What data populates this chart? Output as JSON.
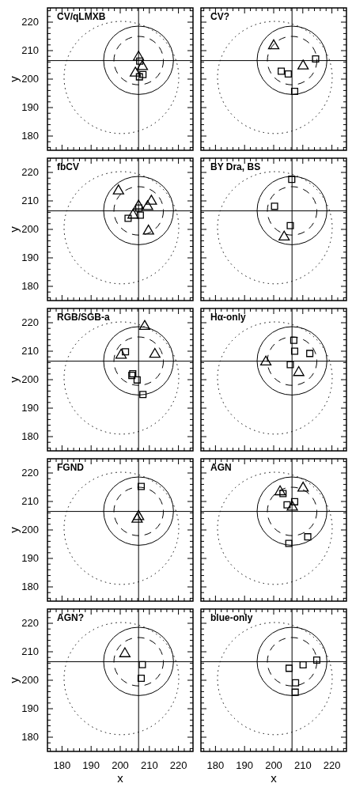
{
  "chart_data": [
    {
      "type": "scatter",
      "title": "CV/qLMXB",
      "ylabel": "y",
      "tick_labels": "y",
      "xlim": [
        175,
        225
      ],
      "ylim": [
        175,
        225
      ],
      "xticks": [
        {
          "value": 176,
          "label": null
        },
        {
          "value": 178,
          "label": null
        },
        180,
        {
          "value": 182,
          "label": null
        },
        {
          "value": 184,
          "label": null
        },
        {
          "value": 186,
          "label": null
        },
        {
          "value": 188,
          "label": null
        },
        190,
        {
          "value": 192,
          "label": null
        },
        {
          "value": 194,
          "label": null
        },
        {
          "value": 196,
          "label": null
        },
        {
          "value": 198,
          "label": null
        },
        200,
        {
          "value": 202,
          "label": null
        },
        {
          "value": 204,
          "label": null
        },
        {
          "value": 206,
          "label": null
        },
        {
          "value": 208,
          "label": null
        },
        210,
        {
          "value": 212,
          "label": null
        },
        {
          "value": 214,
          "label": null
        },
        {
          "value": 216,
          "label": null
        },
        {
          "value": 218,
          "label": null
        },
        220,
        {
          "value": 222,
          "label": null
        },
        {
          "value": 224,
          "label": null
        }
      ],
      "yticks": [
        {
          "value": 176,
          "label": null
        },
        {
          "value": 178,
          "label": null
        },
        180,
        {
          "value": 182,
          "label": null
        },
        {
          "value": 184,
          "label": null
        },
        {
          "value": 186,
          "label": null
        },
        {
          "value": 188,
          "label": null
        },
        190,
        {
          "value": 192,
          "label": null
        },
        {
          "value": 194,
          "label": null
        },
        {
          "value": 196,
          "label": null
        },
        {
          "value": 198,
          "label": null
        },
        200,
        {
          "value": 202,
          "label": null
        },
        {
          "value": 204,
          "label": null
        },
        {
          "value": 206,
          "label": null
        },
        {
          "value": 208,
          "label": null
        },
        210,
        {
          "value": 212,
          "label": null
        },
        {
          "value": 214,
          "label": null
        },
        {
          "value": 216,
          "label": null
        },
        {
          "value": 218,
          "label": null
        },
        220,
        {
          "value": 222,
          "label": null
        },
        {
          "value": 224,
          "label": null
        }
      ],
      "ref_lines": [
        {
          "axis": "x",
          "value": 206.3,
          "color": "#000000"
        },
        {
          "axis": "y",
          "value": 206.5,
          "color": "#000000"
        }
      ],
      "series": [
        {
          "marker": "triangle",
          "color": "#000000",
          "x": [
            206.3,
            207.6,
            205.2
          ],
          "values": [
            207.7,
            204.4,
            202.1
          ]
        },
        {
          "marker": "square",
          "color": "#000000",
          "x": [
            206.7,
            207.8,
            206.6
          ],
          "values": [
            206.3,
            201.6,
            200.8
          ]
        }
      ]
    },
    {
      "type": "scatter",
      "title": "CV?",
      "tick_labels": false,
      "xlim": [
        175,
        225
      ],
      "ylim": [
        175,
        225
      ],
      "xticks": [
        {
          "value": 176,
          "label": null
        },
        {
          "value": 178,
          "label": null
        },
        180,
        {
          "value": 182,
          "label": null
        },
        {
          "value": 184,
          "label": null
        },
        {
          "value": 186,
          "label": null
        },
        {
          "value": 188,
          "label": null
        },
        190,
        {
          "value": 192,
          "label": null
        },
        {
          "value": 194,
          "label": null
        },
        {
          "value": 196,
          "label": null
        },
        {
          "value": 198,
          "label": null
        },
        200,
        {
          "value": 202,
          "label": null
        },
        {
          "value": 204,
          "label": null
        },
        {
          "value": 206,
          "label": null
        },
        {
          "value": 208,
          "label": null
        },
        210,
        {
          "value": 212,
          "label": null
        },
        {
          "value": 214,
          "label": null
        },
        {
          "value": 216,
          "label": null
        },
        {
          "value": 218,
          "label": null
        },
        220,
        {
          "value": 222,
          "label": null
        },
        {
          "value": 224,
          "label": null
        }
      ],
      "yticks": [
        {
          "value": 176,
          "label": null
        },
        {
          "value": 178,
          "label": null
        },
        180,
        {
          "value": 182,
          "label": null
        },
        {
          "value": 184,
          "label": null
        },
        {
          "value": 186,
          "label": null
        },
        {
          "value": 188,
          "label": null
        },
        190,
        {
          "value": 192,
          "label": null
        },
        {
          "value": 194,
          "label": null
        },
        {
          "value": 196,
          "label": null
        },
        {
          "value": 198,
          "label": null
        },
        200,
        {
          "value": 202,
          "label": null
        },
        {
          "value": 204,
          "label": null
        },
        {
          "value": 206,
          "label": null
        },
        {
          "value": 208,
          "label": null
        },
        210,
        {
          "value": 212,
          "label": null
        },
        {
          "value": 214,
          "label": null
        },
        {
          "value": 216,
          "label": null
        },
        {
          "value": 218,
          "label": null
        },
        220,
        {
          "value": 222,
          "label": null
        },
        {
          "value": 224,
          "label": null
        }
      ],
      "ref_lines": [
        {
          "axis": "x",
          "value": 206.3,
          "color": "#000000"
        },
        {
          "axis": "y",
          "value": 206.5,
          "color": "#000000"
        }
      ],
      "series": [
        {
          "marker": "triangle",
          "color": "#000000",
          "x": [
            200.0,
            210.1
          ],
          "values": [
            211.7,
            204.6
          ]
        },
        {
          "marker": "square",
          "color": "#000000",
          "x": [
            214.4,
            202.6,
            205.0,
            207.2
          ],
          "values": [
            207.1,
            202.8,
            201.8,
            195.7
          ]
        }
      ]
    },
    {
      "type": "scatter",
      "title": "fbCV",
      "ylabel": "y",
      "tick_labels": "y",
      "xlim": [
        175,
        225
      ],
      "ylim": [
        175,
        225
      ],
      "xticks": [
        {
          "value": 176,
          "label": null
        },
        {
          "value": 178,
          "label": null
        },
        180,
        {
          "value": 182,
          "label": null
        },
        {
          "value": 184,
          "label": null
        },
        {
          "value": 186,
          "label": null
        },
        {
          "value": 188,
          "label": null
        },
        190,
        {
          "value": 192,
          "label": null
        },
        {
          "value": 194,
          "label": null
        },
        {
          "value": 196,
          "label": null
        },
        {
          "value": 198,
          "label": null
        },
        200,
        {
          "value": 202,
          "label": null
        },
        {
          "value": 204,
          "label": null
        },
        {
          "value": 206,
          "label": null
        },
        {
          "value": 208,
          "label": null
        },
        210,
        {
          "value": 212,
          "label": null
        },
        {
          "value": 214,
          "label": null
        },
        {
          "value": 216,
          "label": null
        },
        {
          "value": 218,
          "label": null
        },
        220,
        {
          "value": 222,
          "label": null
        },
        {
          "value": 224,
          "label": null
        }
      ],
      "yticks": [
        {
          "value": 176,
          "label": null
        },
        {
          "value": 178,
          "label": null
        },
        180,
        {
          "value": 182,
          "label": null
        },
        {
          "value": 184,
          "label": null
        },
        {
          "value": 186,
          "label": null
        },
        {
          "value": 188,
          "label": null
        },
        190,
        {
          "value": 192,
          "label": null
        },
        {
          "value": 194,
          "label": null
        },
        {
          "value": 196,
          "label": null
        },
        {
          "value": 198,
          "label": null
        },
        200,
        {
          "value": 202,
          "label": null
        },
        {
          "value": 204,
          "label": null
        },
        {
          "value": 206,
          "label": null
        },
        {
          "value": 208,
          "label": null
        },
        210,
        {
          "value": 212,
          "label": null
        },
        {
          "value": 214,
          "label": null
        },
        {
          "value": 216,
          "label": null
        },
        {
          "value": 218,
          "label": null
        },
        220,
        {
          "value": 222,
          "label": null
        },
        {
          "value": 224,
          "label": null
        }
      ],
      "ref_lines": [
        {
          "axis": "x",
          "value": 206.3,
          "color": "#000000"
        },
        {
          "axis": "y",
          "value": 206.5,
          "color": "#000000"
        }
      ],
      "series": [
        {
          "marker": "triangle",
          "color": "#000000",
          "x": [
            199.4,
            206.3,
            204.4,
            210.7,
            209.4,
            209.7
          ],
          "values": [
            213.5,
            208.2,
            205.0,
            209.9,
            208.0,
            199.4
          ]
        },
        {
          "marker": "square",
          "color": "#000000",
          "x": [
            206.4,
            202.7,
            206.9
          ],
          "values": [
            207.5,
            203.9,
            205.0
          ]
        }
      ]
    },
    {
      "type": "scatter",
      "title": "BY Dra, BS",
      "tick_labels": false,
      "xlim": [
        175,
        225
      ],
      "ylim": [
        175,
        225
      ],
      "xticks": [
        {
          "value": 176,
          "label": null
        },
        {
          "value": 178,
          "label": null
        },
        180,
        {
          "value": 182,
          "label": null
        },
        {
          "value": 184,
          "label": null
        },
        {
          "value": 186,
          "label": null
        },
        {
          "value": 188,
          "label": null
        },
        190,
        {
          "value": 192,
          "label": null
        },
        {
          "value": 194,
          "label": null
        },
        {
          "value": 196,
          "label": null
        },
        {
          "value": 198,
          "label": null
        },
        200,
        {
          "value": 202,
          "label": null
        },
        {
          "value": 204,
          "label": null
        },
        {
          "value": 206,
          "label": null
        },
        {
          "value": 208,
          "label": null
        },
        210,
        {
          "value": 212,
          "label": null
        },
        {
          "value": 214,
          "label": null
        },
        {
          "value": 216,
          "label": null
        },
        {
          "value": 218,
          "label": null
        },
        220,
        {
          "value": 222,
          "label": null
        },
        {
          "value": 224,
          "label": null
        }
      ],
      "yticks": [
        {
          "value": 176,
          "label": null
        },
        {
          "value": 178,
          "label": null
        },
        180,
        {
          "value": 182,
          "label": null
        },
        {
          "value": 184,
          "label": null
        },
        {
          "value": 186,
          "label": null
        },
        {
          "value": 188,
          "label": null
        },
        190,
        {
          "value": 192,
          "label": null
        },
        {
          "value": 194,
          "label": null
        },
        {
          "value": 196,
          "label": null
        },
        {
          "value": 198,
          "label": null
        },
        200,
        {
          "value": 202,
          "label": null
        },
        {
          "value": 204,
          "label": null
        },
        {
          "value": 206,
          "label": null
        },
        {
          "value": 208,
          "label": null
        },
        210,
        {
          "value": 212,
          "label": null
        },
        {
          "value": 214,
          "label": null
        },
        {
          "value": 216,
          "label": null
        },
        {
          "value": 218,
          "label": null
        },
        220,
        {
          "value": 222,
          "label": null
        },
        {
          "value": 224,
          "label": null
        }
      ],
      "ref_lines": [
        {
          "axis": "x",
          "value": 206.3,
          "color": "#000000"
        },
        {
          "axis": "y",
          "value": 206.5,
          "color": "#000000"
        }
      ],
      "series": [
        {
          "marker": "triangle",
          "color": "#000000",
          "x": [
            203.6
          ],
          "values": [
            197.3
          ]
        },
        {
          "marker": "square",
          "color": "#000000",
          "x": [
            206.2,
            200.3,
            205.7
          ],
          "values": [
            217.6,
            208.1,
            201.3
          ]
        }
      ]
    },
    {
      "type": "scatter",
      "title": "RGB/SGB-a",
      "ylabel": "y",
      "tick_labels": "y",
      "xlim": [
        175,
        225
      ],
      "ylim": [
        175,
        225
      ],
      "xticks": [
        {
          "value": 176,
          "label": null
        },
        {
          "value": 178,
          "label": null
        },
        180,
        {
          "value": 182,
          "label": null
        },
        {
          "value": 184,
          "label": null
        },
        {
          "value": 186,
          "label": null
        },
        {
          "value": 188,
          "label": null
        },
        190,
        {
          "value": 192,
          "label": null
        },
        {
          "value": 194,
          "label": null
        },
        {
          "value": 196,
          "label": null
        },
        {
          "value": 198,
          "label": null
        },
        200,
        {
          "value": 202,
          "label": null
        },
        {
          "value": 204,
          "label": null
        },
        {
          "value": 206,
          "label": null
        },
        {
          "value": 208,
          "label": null
        },
        210,
        {
          "value": 212,
          "label": null
        },
        {
          "value": 214,
          "label": null
        },
        {
          "value": 216,
          "label": null
        },
        {
          "value": 218,
          "label": null
        },
        220,
        {
          "value": 222,
          "label": null
        },
        {
          "value": 224,
          "label": null
        }
      ],
      "yticks": [
        {
          "value": 176,
          "label": null
        },
        {
          "value": 178,
          "label": null
        },
        180,
        {
          "value": 182,
          "label": null
        },
        {
          "value": 184,
          "label": null
        },
        {
          "value": 186,
          "label": null
        },
        {
          "value": 188,
          "label": null
        },
        190,
        {
          "value": 192,
          "label": null
        },
        {
          "value": 194,
          "label": null
        },
        {
          "value": 196,
          "label": null
        },
        {
          "value": 198,
          "label": null
        },
        200,
        {
          "value": 202,
          "label": null
        },
        {
          "value": 204,
          "label": null
        },
        {
          "value": 206,
          "label": null
        },
        {
          "value": 208,
          "label": null
        },
        210,
        {
          "value": 212,
          "label": null
        },
        {
          "value": 214,
          "label": null
        },
        {
          "value": 216,
          "label": null
        },
        {
          "value": 218,
          "label": null
        },
        220,
        {
          "value": 222,
          "label": null
        },
        {
          "value": 224,
          "label": null
        }
      ],
      "ref_lines": [
        {
          "axis": "x",
          "value": 206.3,
          "color": "#000000"
        },
        {
          "axis": "y",
          "value": 206.5,
          "color": "#000000"
        }
      ],
      "series": [
        {
          "marker": "triangle",
          "color": "#000000",
          "x": [
            208.4,
            200.3,
            211.9
          ],
          "values": [
            218.7,
            208.6,
            208.9
          ]
        },
        {
          "marker": "square",
          "color": "#000000",
          "x": [
            201.8,
            204.3,
            204.0,
            205.8,
            207.8
          ],
          "values": [
            209.8,
            202.1,
            201.5,
            199.9,
            194.8
          ]
        }
      ]
    },
    {
      "type": "scatter",
      "title": "Hα-only",
      "tick_labels": false,
      "xlim": [
        175,
        225
      ],
      "ylim": [
        175,
        225
      ],
      "xticks": [
        {
          "value": 176,
          "label": null
        },
        {
          "value": 178,
          "label": null
        },
        180,
        {
          "value": 182,
          "label": null
        },
        {
          "value": 184,
          "label": null
        },
        {
          "value": 186,
          "label": null
        },
        {
          "value": 188,
          "label": null
        },
        190,
        {
          "value": 192,
          "label": null
        },
        {
          "value": 194,
          "label": null
        },
        {
          "value": 196,
          "label": null
        },
        {
          "value": 198,
          "label": null
        },
        200,
        {
          "value": 202,
          "label": null
        },
        {
          "value": 204,
          "label": null
        },
        {
          "value": 206,
          "label": null
        },
        {
          "value": 208,
          "label": null
        },
        210,
        {
          "value": 212,
          "label": null
        },
        {
          "value": 214,
          "label": null
        },
        {
          "value": 216,
          "label": null
        },
        {
          "value": 218,
          "label": null
        },
        220,
        {
          "value": 222,
          "label": null
        },
        {
          "value": 224,
          "label": null
        }
      ],
      "yticks": [
        {
          "value": 176,
          "label": null
        },
        {
          "value": 178,
          "label": null
        },
        180,
        {
          "value": 182,
          "label": null
        },
        {
          "value": 184,
          "label": null
        },
        {
          "value": 186,
          "label": null
        },
        {
          "value": 188,
          "label": null
        },
        190,
        {
          "value": 192,
          "label": null
        },
        {
          "value": 194,
          "label": null
        },
        {
          "value": 196,
          "label": null
        },
        {
          "value": 198,
          "label": null
        },
        200,
        {
          "value": 202,
          "label": null
        },
        {
          "value": 204,
          "label": null
        },
        {
          "value": 206,
          "label": null
        },
        {
          "value": 208,
          "label": null
        },
        210,
        {
          "value": 212,
          "label": null
        },
        {
          "value": 214,
          "label": null
        },
        {
          "value": 216,
          "label": null
        },
        {
          "value": 218,
          "label": null
        },
        220,
        {
          "value": 222,
          "label": null
        },
        {
          "value": 224,
          "label": null
        }
      ],
      "ref_lines": [
        {
          "axis": "x",
          "value": 206.3,
          "color": "#000000"
        },
        {
          "axis": "y",
          "value": 206.5,
          "color": "#000000"
        }
      ],
      "series": [
        {
          "marker": "triangle",
          "color": "#000000",
          "x": [
            197.3,
            208.6
          ],
          "values": [
            206.2,
            202.5
          ]
        },
        {
          "marker": "square",
          "color": "#000000",
          "x": [
            206.9,
            207.2,
            212.4,
            205.7
          ],
          "values": [
            213.8,
            210.0,
            209.2,
            205.3
          ]
        }
      ]
    },
    {
      "type": "scatter",
      "title": "FGND",
      "ylabel": "y",
      "tick_labels": "y",
      "xlim": [
        175,
        225
      ],
      "ylim": [
        175,
        225
      ],
      "xticks": [
        {
          "value": 176,
          "label": null
        },
        {
          "value": 178,
          "label": null
        },
        180,
        {
          "value": 182,
          "label": null
        },
        {
          "value": 184,
          "label": null
        },
        {
          "value": 186,
          "label": null
        },
        {
          "value": 188,
          "label": null
        },
        190,
        {
          "value": 192,
          "label": null
        },
        {
          "value": 194,
          "label": null
        },
        {
          "value": 196,
          "label": null
        },
        {
          "value": 198,
          "label": null
        },
        200,
        {
          "value": 202,
          "label": null
        },
        {
          "value": 204,
          "label": null
        },
        {
          "value": 206,
          "label": null
        },
        {
          "value": 208,
          "label": null
        },
        210,
        {
          "value": 212,
          "label": null
        },
        {
          "value": 214,
          "label": null
        },
        {
          "value": 216,
          "label": null
        },
        {
          "value": 218,
          "label": null
        },
        220,
        {
          "value": 222,
          "label": null
        },
        {
          "value": 224,
          "label": null
        }
      ],
      "yticks": [
        {
          "value": 176,
          "label": null
        },
        {
          "value": 178,
          "label": null
        },
        180,
        {
          "value": 182,
          "label": null
        },
        {
          "value": 184,
          "label": null
        },
        {
          "value": 186,
          "label": null
        },
        {
          "value": 188,
          "label": null
        },
        190,
        {
          "value": 192,
          "label": null
        },
        {
          "value": 194,
          "label": null
        },
        {
          "value": 196,
          "label": null
        },
        {
          "value": 198,
          "label": null
        },
        200,
        {
          "value": 202,
          "label": null
        },
        {
          "value": 204,
          "label": null
        },
        {
          "value": 206,
          "label": null
        },
        {
          "value": 208,
          "label": null
        },
        210,
        {
          "value": 212,
          "label": null
        },
        {
          "value": 214,
          "label": null
        },
        {
          "value": 216,
          "label": null
        },
        {
          "value": 218,
          "label": null
        },
        220,
        {
          "value": 222,
          "label": null
        },
        {
          "value": 224,
          "label": null
        }
      ],
      "ref_lines": [
        {
          "axis": "x",
          "value": 206.3,
          "color": "#000000"
        },
        {
          "axis": "y",
          "value": 206.5,
          "color": "#000000"
        }
      ],
      "series": [
        {
          "marker": "triangle",
          "color": "#000000",
          "x": [
            206.3,
            205.8
          ],
          "values": [
            204.7,
            203.8
          ]
        },
        {
          "marker": "square",
          "color": "#000000",
          "x": [
            207.2
          ],
          "values": [
            215.3
          ]
        }
      ]
    },
    {
      "type": "scatter",
      "title": "AGN",
      "tick_labels": false,
      "xlim": [
        175,
        225
      ],
      "ylim": [
        175,
        225
      ],
      "xticks": [
        {
          "value": 176,
          "label": null
        },
        {
          "value": 178,
          "label": null
        },
        180,
        {
          "value": 182,
          "label": null
        },
        {
          "value": 184,
          "label": null
        },
        {
          "value": 186,
          "label": null
        },
        {
          "value": 188,
          "label": null
        },
        190,
        {
          "value": 192,
          "label": null
        },
        {
          "value": 194,
          "label": null
        },
        {
          "value": 196,
          "label": null
        },
        {
          "value": 198,
          "label": null
        },
        200,
        {
          "value": 202,
          "label": null
        },
        {
          "value": 204,
          "label": null
        },
        {
          "value": 206,
          "label": null
        },
        {
          "value": 208,
          "label": null
        },
        210,
        {
          "value": 212,
          "label": null
        },
        {
          "value": 214,
          "label": null
        },
        {
          "value": 216,
          "label": null
        },
        {
          "value": 218,
          "label": null
        },
        220,
        {
          "value": 222,
          "label": null
        },
        {
          "value": 224,
          "label": null
        }
      ],
      "yticks": [
        {
          "value": 176,
          "label": null
        },
        {
          "value": 178,
          "label": null
        },
        180,
        {
          "value": 182,
          "label": null
        },
        {
          "value": 184,
          "label": null
        },
        {
          "value": 186,
          "label": null
        },
        {
          "value": 188,
          "label": null
        },
        190,
        {
          "value": 192,
          "label": null
        },
        {
          "value": 194,
          "label": null
        },
        {
          "value": 196,
          "label": null
        },
        {
          "value": 198,
          "label": null
        },
        200,
        {
          "value": 202,
          "label": null
        },
        {
          "value": 204,
          "label": null
        },
        {
          "value": 206,
          "label": null
        },
        {
          "value": 208,
          "label": null
        },
        210,
        {
          "value": 212,
          "label": null
        },
        {
          "value": 214,
          "label": null
        },
        {
          "value": 216,
          "label": null
        },
        {
          "value": 218,
          "label": null
        },
        220,
        {
          "value": 222,
          "label": null
        },
        {
          "value": 224,
          "label": null
        }
      ],
      "ref_lines": [
        {
          "axis": "x",
          "value": 206.3,
          "color": "#000000"
        },
        {
          "axis": "y",
          "value": 206.5,
          "color": "#000000"
        }
      ],
      "series": [
        {
          "marker": "triangle",
          "color": "#000000",
          "x": [
            202.2,
            210.1,
            206.4
          ],
          "values": [
            213.4,
            214.7,
            208.0
          ]
        },
        {
          "marker": "square",
          "color": "#000000",
          "x": [
            203.2,
            204.6,
            207.2,
            211.7,
            205.2
          ],
          "values": [
            212.8,
            208.8,
            209.9,
            197.6,
            195.3
          ]
        }
      ]
    },
    {
      "type": "scatter",
      "title": "AGN?",
      "xlabel": "x",
      "ylabel": "y",
      "xlim": [
        175,
        225
      ],
      "ylim": [
        175,
        225
      ],
      "xticks": [
        {
          "value": 176,
          "label": null
        },
        {
          "value": 178,
          "label": null
        },
        180,
        {
          "value": 182,
          "label": null
        },
        {
          "value": 184,
          "label": null
        },
        {
          "value": 186,
          "label": null
        },
        {
          "value": 188,
          "label": null
        },
        190,
        {
          "value": 192,
          "label": null
        },
        {
          "value": 194,
          "label": null
        },
        {
          "value": 196,
          "label": null
        },
        {
          "value": 198,
          "label": null
        },
        200,
        {
          "value": 202,
          "label": null
        },
        {
          "value": 204,
          "label": null
        },
        {
          "value": 206,
          "label": null
        },
        {
          "value": 208,
          "label": null
        },
        210,
        {
          "value": 212,
          "label": null
        },
        {
          "value": 214,
          "label": null
        },
        {
          "value": 216,
          "label": null
        },
        {
          "value": 218,
          "label": null
        },
        220,
        {
          "value": 222,
          "label": null
        },
        {
          "value": 224,
          "label": null
        }
      ],
      "yticks": [
        {
          "value": 176,
          "label": null
        },
        {
          "value": 178,
          "label": null
        },
        180,
        {
          "value": 182,
          "label": null
        },
        {
          "value": 184,
          "label": null
        },
        {
          "value": 186,
          "label": null
        },
        {
          "value": 188,
          "label": null
        },
        190,
        {
          "value": 192,
          "label": null
        },
        {
          "value": 194,
          "label": null
        },
        {
          "value": 196,
          "label": null
        },
        {
          "value": 198,
          "label": null
        },
        200,
        {
          "value": 202,
          "label": null
        },
        {
          "value": 204,
          "label": null
        },
        {
          "value": 206,
          "label": null
        },
        {
          "value": 208,
          "label": null
        },
        210,
        {
          "value": 212,
          "label": null
        },
        {
          "value": 214,
          "label": null
        },
        {
          "value": 216,
          "label": null
        },
        {
          "value": 218,
          "label": null
        },
        220,
        {
          "value": 222,
          "label": null
        },
        {
          "value": 224,
          "label": null
        }
      ],
      "ref_lines": [
        {
          "axis": "x",
          "value": 206.3,
          "color": "#000000"
        },
        {
          "axis": "y",
          "value": 206.5,
          "color": "#000000"
        }
      ],
      "series": [
        {
          "marker": "triangle",
          "color": "#000000",
          "x": [
            201.6
          ],
          "values": [
            209.3
          ]
        },
        {
          "marker": "square",
          "color": "#000000",
          "x": [
            207.6,
            207.2
          ],
          "values": [
            205.5,
            200.7
          ]
        }
      ]
    },
    {
      "type": "scatter",
      "title": "blue-only",
      "xlabel": "x",
      "tick_labels": "x",
      "xlim": [
        175,
        225
      ],
      "ylim": [
        175,
        225
      ],
      "xticks": [
        {
          "value": 176,
          "label": null
        },
        {
          "value": 178,
          "label": null
        },
        180,
        {
          "value": 182,
          "label": null
        },
        {
          "value": 184,
          "label": null
        },
        {
          "value": 186,
          "label": null
        },
        {
          "value": 188,
          "label": null
        },
        190,
        {
          "value": 192,
          "label": null
        },
        {
          "value": 194,
          "label": null
        },
        {
          "value": 196,
          "label": null
        },
        {
          "value": 198,
          "label": null
        },
        200,
        {
          "value": 202,
          "label": null
        },
        {
          "value": 204,
          "label": null
        },
        {
          "value": 206,
          "label": null
        },
        {
          "value": 208,
          "label": null
        },
        210,
        {
          "value": 212,
          "label": null
        },
        {
          "value": 214,
          "label": null
        },
        {
          "value": 216,
          "label": null
        },
        {
          "value": 218,
          "label": null
        },
        220,
        {
          "value": 222,
          "label": null
        },
        {
          "value": 224,
          "label": null
        }
      ],
      "yticks": [
        {
          "value": 176,
          "label": null
        },
        {
          "value": 178,
          "label": null
        },
        180,
        {
          "value": 182,
          "label": null
        },
        {
          "value": 184,
          "label": null
        },
        {
          "value": 186,
          "label": null
        },
        {
          "value": 188,
          "label": null
        },
        190,
        {
          "value": 192,
          "label": null
        },
        {
          "value": 194,
          "label": null
        },
        {
          "value": 196,
          "label": null
        },
        {
          "value": 198,
          "label": null
        },
        200,
        {
          "value": 202,
          "label": null
        },
        {
          "value": 204,
          "label": null
        },
        {
          "value": 206,
          "label": null
        },
        {
          "value": 208,
          "label": null
        },
        210,
        {
          "value": 212,
          "label": null
        },
        {
          "value": 214,
          "label": null
        },
        {
          "value": 216,
          "label": null
        },
        {
          "value": 218,
          "label": null
        },
        220,
        {
          "value": 222,
          "label": null
        },
        {
          "value": 224,
          "label": null
        }
      ],
      "ref_lines": [
        {
          "axis": "x",
          "value": 206.3,
          "color": "#000000"
        },
        {
          "axis": "y",
          "value": 206.5,
          "color": "#000000"
        }
      ],
      "series": [
        {
          "marker": "square",
          "color": "#000000",
          "x": [
            205.3,
            210.1,
            214.8,
            207.5,
            207.4
          ],
          "values": [
            204.2,
            205.4,
            207.1,
            199.1,
            195.8
          ]
        }
      ]
    }
  ]
}
